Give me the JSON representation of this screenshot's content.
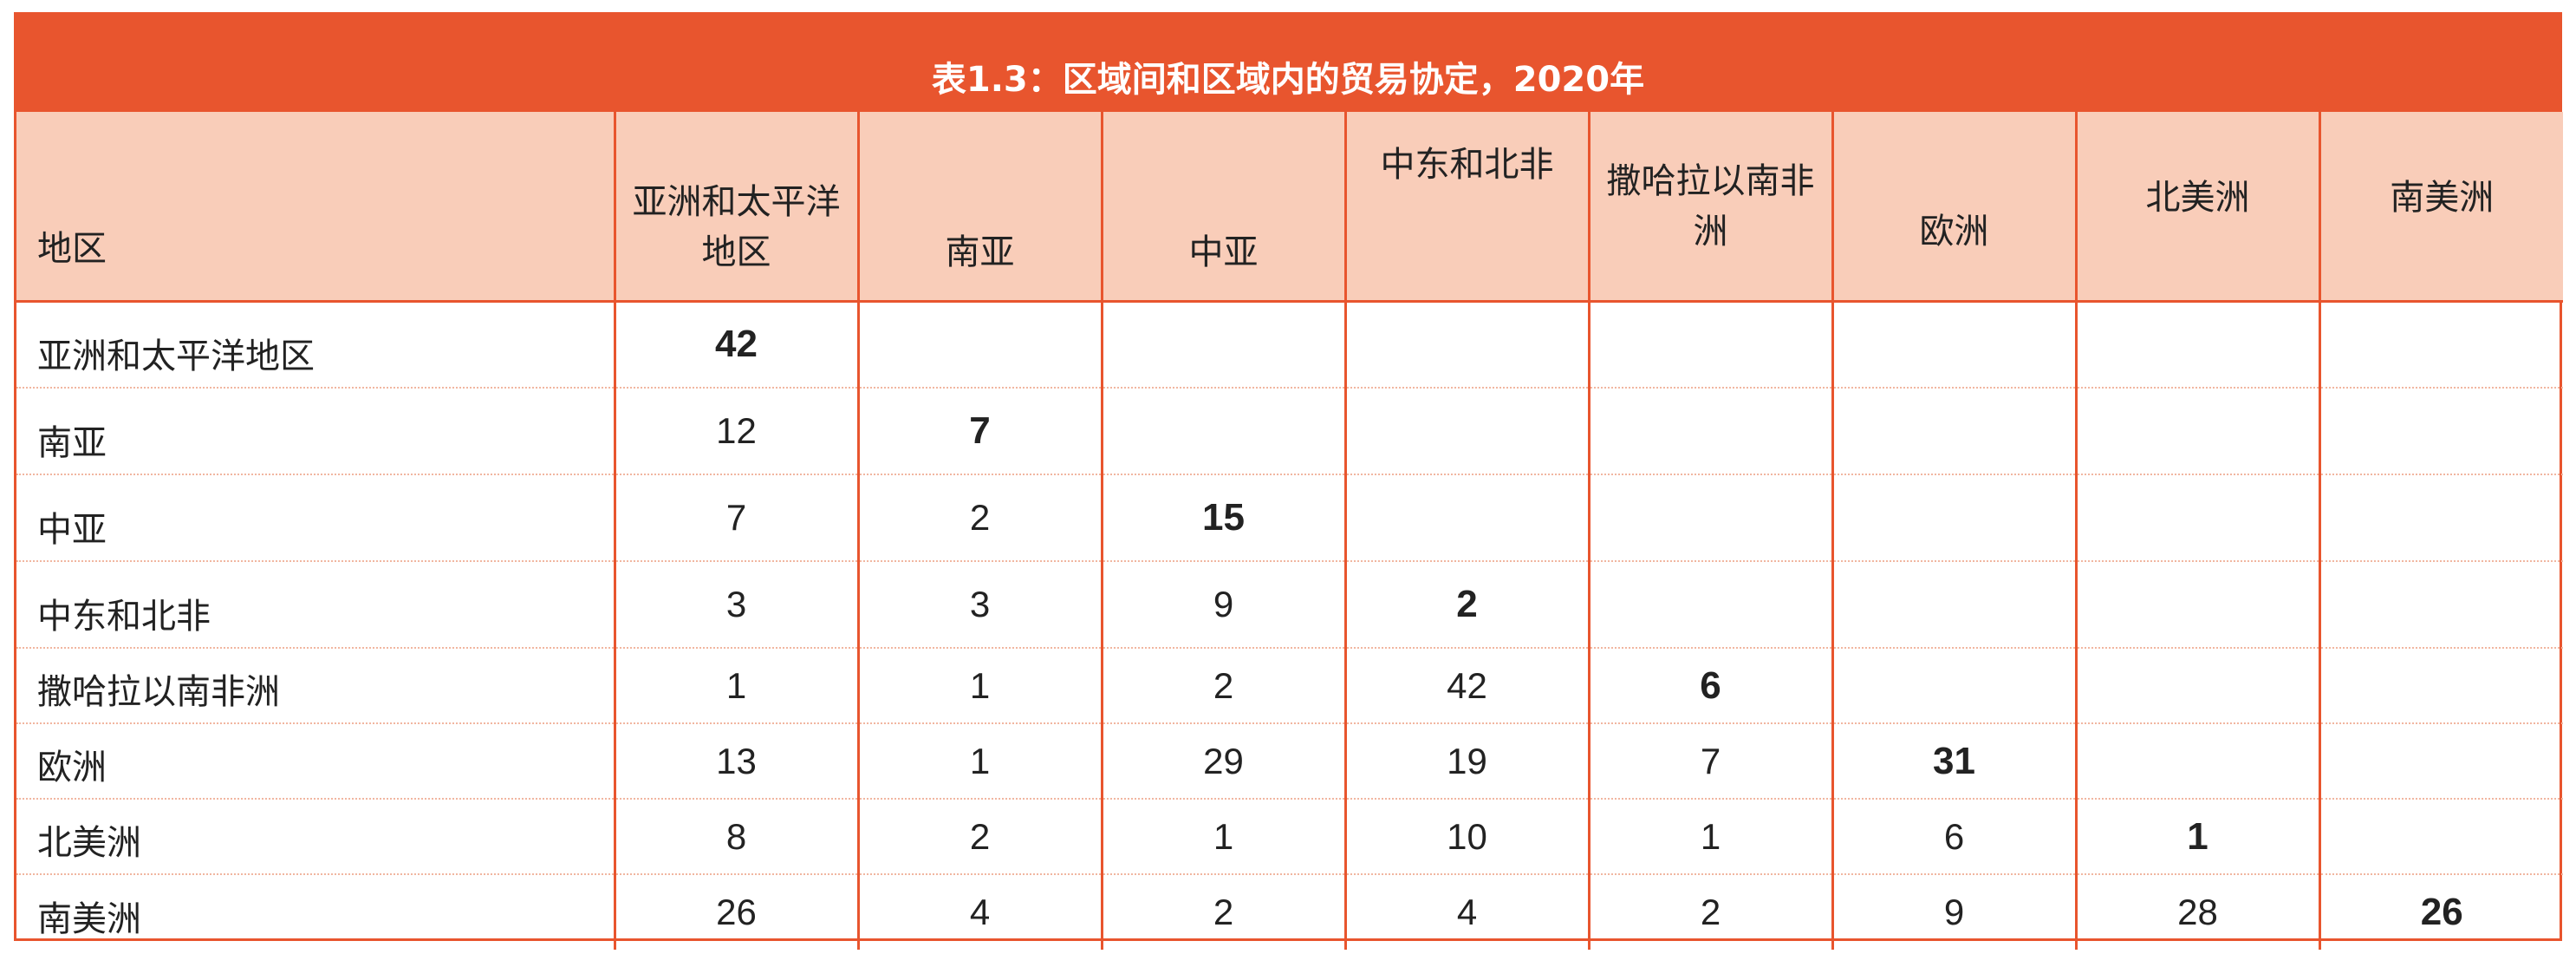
{
  "title": "表1.3：区域间和区域内的贸易协定，2020年",
  "columns": [
    {
      "label": "地区"
    },
    {
      "label": "亚洲和太平洋地区"
    },
    {
      "label": "南亚"
    },
    {
      "label": "中亚"
    },
    {
      "label": "中东和北非"
    },
    {
      "label": "撒哈拉以南非洲"
    },
    {
      "label": "欧洲"
    },
    {
      "label": "北美洲"
    },
    {
      "label": "南美洲"
    }
  ],
  "rows": [
    {
      "region": "亚洲和太平洋地区",
      "cells": [
        "42",
        "",
        "",
        "",
        "",
        "",
        "",
        ""
      ]
    },
    {
      "region": "南亚",
      "cells": [
        "12",
        "7",
        "",
        "",
        "",
        "",
        "",
        ""
      ]
    },
    {
      "region": "中亚",
      "cells": [
        "7",
        "2",
        "15",
        "",
        "",
        "",
        "",
        ""
      ]
    },
    {
      "region": "中东和北非",
      "cells": [
        "3",
        "3",
        "9",
        "2",
        "",
        "",
        "",
        ""
      ]
    },
    {
      "region": "撒哈拉以南非洲",
      "cells": [
        "1",
        "1",
        "2",
        "42",
        "6",
        "",
        "",
        ""
      ]
    },
    {
      "region": "欧洲",
      "cells": [
        "13",
        "1",
        "29",
        "19",
        "7",
        "31",
        "",
        ""
      ]
    },
    {
      "region": "北美洲",
      "cells": [
        "8",
        "2",
        "1",
        "10",
        "1",
        "6",
        "1",
        ""
      ]
    },
    {
      "region": "南美洲",
      "cells": [
        "26",
        "4",
        "2",
        "4",
        "2",
        "9",
        "28",
        "26"
      ]
    }
  ],
  "colors": {
    "accent": "#E8552E",
    "header_fill": "#F9CDB9",
    "row_separator": "#F1B6A0"
  }
}
